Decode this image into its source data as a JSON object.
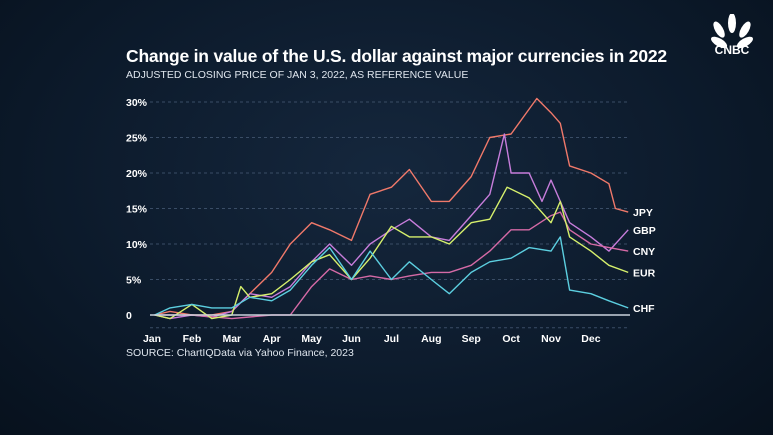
{
  "logo": "CNBC",
  "chart_data": {
    "type": "line",
    "title": "Change in value of the U.S. dollar against major currencies in 2022",
    "subtitle": "ADJUSTED CLOSING PRICE OF JAN 3, 2022, AS REFERENCE VALUE",
    "source": "SOURCE: ChartIQData via Yahoo Finance, 2023",
    "x_ticks": [
      "Jan",
      "Feb",
      "Mar",
      "Apr",
      "May",
      "Jun",
      "Jul",
      "Aug",
      "Sep",
      "Oct",
      "Nov",
      "Dec"
    ],
    "y_ticks": [
      {
        "v": 0,
        "label": "0"
      },
      {
        "v": 5,
        "label": "5%"
      },
      {
        "v": 10,
        "label": "10%"
      },
      {
        "v": 15,
        "label": "15%"
      },
      {
        "v": 20,
        "label": "20%"
      },
      {
        "v": 25,
        "label": "25%"
      },
      {
        "v": 30,
        "label": "30%"
      }
    ],
    "ylim": [
      -2,
      31
    ],
    "grid": true,
    "series": [
      {
        "name": "JPY",
        "color": "#f0796a",
        "points": [
          [
            "2022-01-03",
            0
          ],
          [
            "2022-01-15",
            0.5
          ],
          [
            "2022-02-01",
            0
          ],
          [
            "2022-02-15",
            0
          ],
          [
            "2022-03-01",
            0.5
          ],
          [
            "2022-03-15",
            3
          ],
          [
            "2022-04-01",
            6
          ],
          [
            "2022-04-15",
            10
          ],
          [
            "2022-05-01",
            13
          ],
          [
            "2022-05-15",
            12
          ],
          [
            "2022-06-01",
            10.5
          ],
          [
            "2022-06-15",
            17
          ],
          [
            "2022-07-01",
            18
          ],
          [
            "2022-07-15",
            20.5
          ],
          [
            "2022-08-01",
            16
          ],
          [
            "2022-08-15",
            16
          ],
          [
            "2022-09-01",
            19.5
          ],
          [
            "2022-09-15",
            25
          ],
          [
            "2022-10-01",
            25.5
          ],
          [
            "2022-10-15",
            29
          ],
          [
            "2022-10-21",
            30.5
          ],
          [
            "2022-11-01",
            28.5
          ],
          [
            "2022-11-08",
            27
          ],
          [
            "2022-11-15",
            21
          ],
          [
            "2022-12-01",
            20
          ],
          [
            "2022-12-15",
            18.5
          ],
          [
            "2022-12-20",
            15
          ],
          [
            "2022-12-30",
            14.5
          ]
        ]
      },
      {
        "name": "GBP",
        "color": "#c77ddb",
        "points": [
          [
            "2022-01-03",
            0
          ],
          [
            "2022-01-15",
            -0.5
          ],
          [
            "2022-02-01",
            0
          ],
          [
            "2022-02-15",
            -0.3
          ],
          [
            "2022-03-01",
            0.5
          ],
          [
            "2022-03-15",
            3
          ],
          [
            "2022-04-01",
            2.5
          ],
          [
            "2022-04-15",
            4
          ],
          [
            "2022-05-01",
            7.5
          ],
          [
            "2022-05-15",
            10
          ],
          [
            "2022-06-01",
            7
          ],
          [
            "2022-06-15",
            10
          ],
          [
            "2022-07-01",
            12
          ],
          [
            "2022-07-15",
            13.5
          ],
          [
            "2022-08-01",
            11
          ],
          [
            "2022-08-15",
            10.5
          ],
          [
            "2022-09-01",
            14
          ],
          [
            "2022-09-15",
            17
          ],
          [
            "2022-09-26",
            25.5
          ],
          [
            "2022-10-01",
            20
          ],
          [
            "2022-10-15",
            20
          ],
          [
            "2022-10-25",
            16
          ],
          [
            "2022-11-01",
            19
          ],
          [
            "2022-11-15",
            13
          ],
          [
            "2022-12-01",
            11
          ],
          [
            "2022-12-15",
            9
          ],
          [
            "2022-12-30",
            12
          ]
        ]
      },
      {
        "name": "CNY",
        "color": "#d56aa6",
        "points": [
          [
            "2022-01-03",
            0
          ],
          [
            "2022-02-01",
            0
          ],
          [
            "2022-03-01",
            -0.5
          ],
          [
            "2022-04-01",
            0
          ],
          [
            "2022-04-15",
            0
          ],
          [
            "2022-05-01",
            4
          ],
          [
            "2022-05-15",
            6.5
          ],
          [
            "2022-06-01",
            5
          ],
          [
            "2022-06-15",
            5.5
          ],
          [
            "2022-07-01",
            5
          ],
          [
            "2022-07-15",
            5.5
          ],
          [
            "2022-08-01",
            6
          ],
          [
            "2022-08-15",
            6
          ],
          [
            "2022-09-01",
            7
          ],
          [
            "2022-09-15",
            9
          ],
          [
            "2022-10-01",
            12
          ],
          [
            "2022-10-15",
            12
          ],
          [
            "2022-11-01",
            14
          ],
          [
            "2022-11-08",
            14.5
          ],
          [
            "2022-11-15",
            12
          ],
          [
            "2022-12-01",
            10
          ],
          [
            "2022-12-15",
            9.5
          ],
          [
            "2022-12-30",
            9
          ]
        ]
      },
      {
        "name": "EUR",
        "color": "#d6f06c",
        "points": [
          [
            "2022-01-03",
            0
          ],
          [
            "2022-01-15",
            -0.5
          ],
          [
            "2022-02-01",
            1.5
          ],
          [
            "2022-02-15",
            -0.5
          ],
          [
            "2022-03-01",
            0
          ],
          [
            "2022-03-08",
            4
          ],
          [
            "2022-03-15",
            2.5
          ],
          [
            "2022-04-01",
            3
          ],
          [
            "2022-04-15",
            5
          ],
          [
            "2022-05-01",
            7.5
          ],
          [
            "2022-05-15",
            8.5
          ],
          [
            "2022-06-01",
            5
          ],
          [
            "2022-06-15",
            8
          ],
          [
            "2022-07-01",
            12.5
          ],
          [
            "2022-07-15",
            11
          ],
          [
            "2022-08-01",
            11
          ],
          [
            "2022-08-15",
            10
          ],
          [
            "2022-09-01",
            13
          ],
          [
            "2022-09-15",
            13.5
          ],
          [
            "2022-09-28",
            18
          ],
          [
            "2022-10-15",
            16.5
          ],
          [
            "2022-11-01",
            13
          ],
          [
            "2022-11-08",
            16
          ],
          [
            "2022-11-15",
            11
          ],
          [
            "2022-12-01",
            9
          ],
          [
            "2022-12-15",
            7
          ],
          [
            "2022-12-30",
            6
          ]
        ]
      },
      {
        "name": "CHF",
        "color": "#5ccfe0",
        "points": [
          [
            "2022-01-03",
            0
          ],
          [
            "2022-01-15",
            1
          ],
          [
            "2022-02-01",
            1.5
          ],
          [
            "2022-02-15",
            1
          ],
          [
            "2022-03-01",
            1
          ],
          [
            "2022-03-15",
            2.5
          ],
          [
            "2022-04-01",
            2
          ],
          [
            "2022-04-15",
            3.5
          ],
          [
            "2022-05-01",
            7
          ],
          [
            "2022-05-15",
            9.5
          ],
          [
            "2022-06-01",
            5
          ],
          [
            "2022-06-15",
            9
          ],
          [
            "2022-07-01",
            5
          ],
          [
            "2022-07-15",
            7.5
          ],
          [
            "2022-08-01",
            5
          ],
          [
            "2022-08-15",
            3
          ],
          [
            "2022-09-01",
            6
          ],
          [
            "2022-09-15",
            7.5
          ],
          [
            "2022-10-01",
            8
          ],
          [
            "2022-10-15",
            9.5
          ],
          [
            "2022-11-01",
            9
          ],
          [
            "2022-11-08",
            11
          ],
          [
            "2022-11-15",
            3.5
          ],
          [
            "2022-12-01",
            3
          ],
          [
            "2022-12-15",
            2
          ],
          [
            "2022-12-30",
            1
          ]
        ]
      }
    ]
  }
}
